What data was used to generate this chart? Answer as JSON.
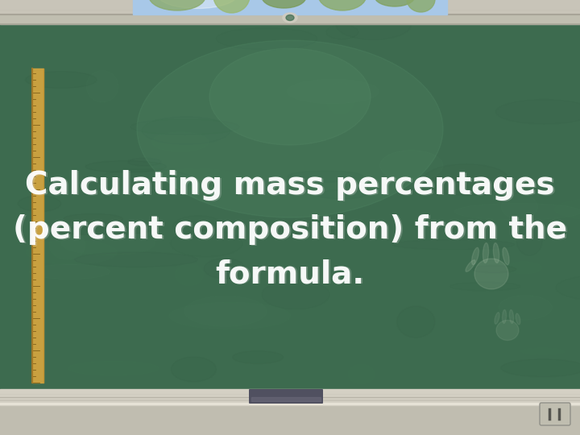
{
  "title_lines": [
    "Calculating mass percentages",
    "(percent composition) from the",
    "formula."
  ],
  "board_color": "#3d6b4f",
  "board_dark": "#2e5540",
  "board_light": "#4a7a5c",
  "text_color": "#ffffff",
  "font_size": 28,
  "wall_color": "#c8c4b8",
  "wall_tile_color": "#d0ccc0",
  "frame_color_top": "#b8b4a0",
  "frame_color_side": "#a0a090",
  "tray_color": "#c8c8c0",
  "eraser_color": "#505060",
  "ruler_color": "#c8a040",
  "map_color": "#a8c8e8",
  "screen_housing_color": "#c8c2b0",
  "outlet_color": "#c0beb0"
}
